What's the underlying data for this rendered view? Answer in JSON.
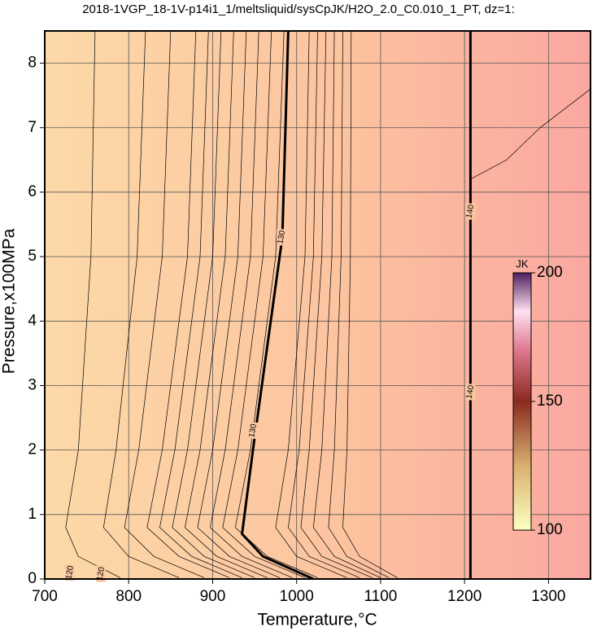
{
  "chart_data": {
    "type": "contour",
    "title": "2018-1VGP_18-1V-p14i1_1/meltsliquid/sysCpJK/H2O_2.0_C0.010_1_PT, dz=1:",
    "x_label": "Temperature,°C",
    "y_label": "Pressure,x100MPa",
    "xlim": [
      700,
      1350
    ],
    "ylim": [
      0,
      8.5
    ],
    "xticks": [
      700,
      800,
      900,
      1000,
      1100,
      1200,
      1300
    ],
    "yticks": [
      0,
      1,
      2,
      3,
      4,
      5,
      6,
      7,
      8
    ],
    "grid": true,
    "contours": [
      {
        "x": [
          760,
          755,
          740,
          725,
          740,
          790
        ],
        "y": [
          8.5,
          5,
          2,
          0.8,
          0.35,
          0.02
        ]
      },
      {
        "x": [
          820,
          810,
          785,
          770,
          800,
          860
        ],
        "y": [
          8.5,
          5,
          2,
          0.8,
          0.35,
          0.02
        ]
      },
      {
        "x": [
          850,
          840,
          812,
          795,
          830,
          890
        ],
        "y": [
          8.5,
          5,
          2,
          0.8,
          0.35,
          0.02
        ]
      },
      {
        "x": [
          880,
          870,
          840,
          822,
          860,
          920
        ],
        "y": [
          8.5,
          5,
          2,
          0.8,
          0.35,
          0.02
        ]
      },
      {
        "x": [
          895,
          885,
          855,
          837,
          875,
          935
        ],
        "y": [
          8.5,
          5,
          2,
          0.8,
          0.35,
          0.02
        ]
      },
      {
        "x": [
          910,
          900,
          870,
          852,
          890,
          950
        ],
        "y": [
          8.5,
          5,
          2,
          0.8,
          0.35,
          0.02
        ]
      },
      {
        "x": [
          925,
          915,
          885,
          867,
          905,
          965
        ],
        "y": [
          8.5,
          5,
          2,
          0.8,
          0.35,
          0.02
        ]
      },
      {
        "x": [
          940,
          930,
          900,
          882,
          920,
          980
        ],
        "y": [
          8.5,
          5,
          2,
          0.8,
          0.35,
          0.02
        ]
      },
      {
        "x": [
          955,
          945,
          915,
          897,
          935,
          995
        ],
        "y": [
          8.5,
          5,
          2,
          0.8,
          0.35,
          0.02
        ]
      },
      {
        "x": [
          970,
          960,
          930,
          912,
          950,
          1010
        ],
        "y": [
          8.5,
          5,
          2,
          0.8,
          0.35,
          0.02
        ]
      },
      {
        "x": [
          985,
          975,
          945,
          927,
          965,
          1025
        ],
        "y": [
          8.5,
          5,
          2,
          0.8,
          0.35,
          0.02
        ]
      },
      {
        "x": [
          990,
          983,
          948,
          935,
          960,
          1020
        ],
        "y": [
          8.5,
          5.3,
          2,
          0.7,
          0.35,
          0
        ],
        "bold": true
      },
      {
        "x": [
          1015,
          1010,
          990,
          975,
          1000,
          1060
        ],
        "y": [
          8.5,
          5,
          2,
          0.8,
          0.35,
          0.02
        ]
      },
      {
        "x": [
          1025,
          1020,
          1003,
          990,
          1015,
          1075
        ],
        "y": [
          8.5,
          5,
          2,
          0.8,
          0.35,
          0.02
        ]
      },
      {
        "x": [
          1035,
          1030,
          1015,
          1005,
          1030,
          1090
        ],
        "y": [
          8.5,
          5,
          2,
          0.8,
          0.35,
          0.02
        ]
      },
      {
        "x": [
          1045,
          1042,
          1030,
          1020,
          1045,
          1100
        ],
        "y": [
          8.5,
          5,
          2,
          0.8,
          0.35,
          0.02
        ]
      },
      {
        "x": [
          1055,
          1053,
          1045,
          1038,
          1060,
          1110
        ],
        "y": [
          8.5,
          5,
          2,
          0.8,
          0.35,
          0.02
        ]
      },
      {
        "x": [
          1065,
          1064,
          1060,
          1055,
          1075,
          1120
        ],
        "y": [
          8.5,
          5,
          2,
          0.8,
          0.35,
          0.02
        ]
      },
      {
        "x": [
          1207,
          1207
        ],
        "y": [
          0,
          8.5
        ],
        "bold": true
      },
      {
        "x": [
          1350,
          1290,
          1250,
          1207
        ],
        "y": [
          7.6,
          7.0,
          6.5,
          6.2
        ]
      }
    ],
    "contour_labels": [
      {
        "text": "120",
        "x": 730,
        "y": 0.1
      },
      {
        "text": "120",
        "x": 767,
        "y": 0.08
      },
      {
        "text": "130",
        "x": 982,
        "y": 5.3
      },
      {
        "text": "130",
        "x": 948,
        "y": 2.3
      },
      {
        "text": "140",
        "x": 1207,
        "y": 5.7
      },
      {
        "text": "140",
        "x": 1207,
        "y": 2.9
      }
    ],
    "colorbar": {
      "label": "JK",
      "lim": [
        100,
        200
      ],
      "ticks": [
        100,
        150,
        200
      ]
    }
  }
}
